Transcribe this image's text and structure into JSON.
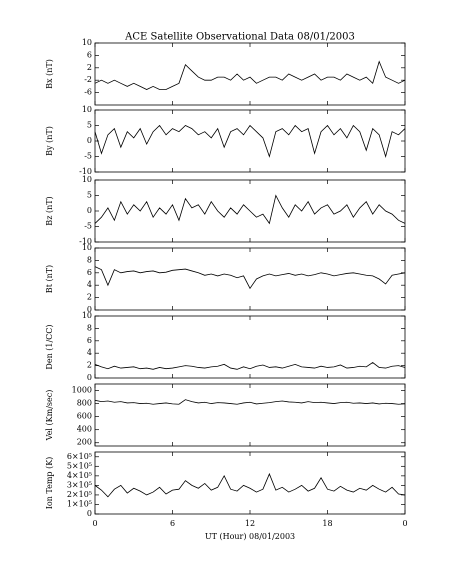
{
  "chart_data": [
    {
      "type": "line",
      "title": "ACE Satellite Observational Data   08/01/2003",
      "ylabel": "Bx (nT)",
      "ylim": [
        -10,
        10
      ],
      "yticks": [
        10,
        6,
        2,
        -2,
        -6
      ],
      "x": [
        0,
        0.5,
        1,
        1.5,
        2,
        2.5,
        3,
        3.5,
        4,
        4.5,
        5,
        5.5,
        6,
        6.5,
        7,
        7.5,
        8,
        8.5,
        9,
        9.5,
        10,
        10.5,
        11,
        11.5,
        12,
        12.5,
        13,
        13.5,
        14,
        14.5,
        15,
        15.5,
        16,
        16.5,
        17,
        17.5,
        18,
        18.5,
        19,
        19.5,
        20,
        20.5,
        21,
        21.5,
        22,
        22.5,
        23,
        23.5,
        24
      ],
      "values": [
        -3,
        -2,
        -3,
        -2,
        -3,
        -4,
        -3,
        -4,
        -5,
        -4,
        -5,
        -5,
        -4,
        -3,
        3,
        1,
        -1,
        -2,
        -2,
        -1,
        -1,
        -2,
        0,
        -2,
        -1,
        -3,
        -2,
        -1,
        -1,
        -2,
        0,
        -1,
        -2,
        -1,
        0,
        -2,
        -1,
        -1,
        -2,
        0,
        -1,
        -2,
        -1,
        -3,
        4,
        -1,
        -2,
        -3,
        -2
      ]
    },
    {
      "type": "line",
      "ylabel": "By (nT)",
      "ylim": [
        -10,
        10
      ],
      "yticks": [
        10,
        5,
        0,
        -5,
        -10
      ],
      "x": [
        0,
        0.5,
        1,
        1.5,
        2,
        2.5,
        3,
        3.5,
        4,
        4.5,
        5,
        5.5,
        6,
        6.5,
        7,
        7.5,
        8,
        8.5,
        9,
        9.5,
        10,
        10.5,
        11,
        11.5,
        12,
        12.5,
        13,
        13.5,
        14,
        14.5,
        15,
        15.5,
        16,
        16.5,
        17,
        17.5,
        18,
        18.5,
        19,
        19.5,
        20,
        20.5,
        21,
        21.5,
        22,
        22.5,
        23,
        23.5,
        24
      ],
      "values": [
        3,
        -4,
        2,
        4,
        -2,
        3,
        1,
        4,
        -1,
        3,
        5,
        2,
        4,
        3,
        5,
        4,
        2,
        3,
        1,
        4,
        -2,
        3,
        4,
        2,
        5,
        3,
        1,
        -5,
        3,
        4,
        2,
        5,
        3,
        4,
        -4,
        3,
        5,
        2,
        4,
        1,
        5,
        3,
        -3,
        4,
        2,
        -5,
        3,
        2,
        4
      ]
    },
    {
      "type": "line",
      "ylabel": "Bz (nT)",
      "ylim": [
        -10,
        10
      ],
      "yticks": [
        10,
        5,
        0,
        -5,
        -10
      ],
      "x": [
        0,
        0.5,
        1,
        1.5,
        2,
        2.5,
        3,
        3.5,
        4,
        4.5,
        5,
        5.5,
        6,
        6.5,
        7,
        7.5,
        8,
        8.5,
        9,
        9.5,
        10,
        10.5,
        11,
        11.5,
        12,
        12.5,
        13,
        13.5,
        14,
        14.5,
        15,
        15.5,
        16,
        16.5,
        17,
        17.5,
        18,
        18.5,
        19,
        19.5,
        20,
        20.5,
        21,
        21.5,
        22,
        22.5,
        23,
        23.5,
        24
      ],
      "values": [
        -4,
        -2,
        1,
        -3,
        3,
        -1,
        2,
        0,
        3,
        -2,
        1,
        -1,
        2,
        -3,
        4,
        1,
        2,
        -1,
        3,
        0,
        -2,
        1,
        -1,
        2,
        0,
        -2,
        -1,
        -4,
        5,
        1,
        -2,
        2,
        0,
        3,
        -1,
        1,
        2,
        -1,
        0,
        2,
        -2,
        1,
        3,
        -1,
        2,
        0,
        -1,
        -3,
        -4
      ]
    },
    {
      "type": "line",
      "ylabel": "Bt (nT)",
      "ylim": [
        0,
        10
      ],
      "yticks": [
        10,
        8,
        6,
        4,
        2,
        0
      ],
      "x": [
        0,
        0.5,
        1,
        1.5,
        2,
        2.5,
        3,
        3.5,
        4,
        4.5,
        5,
        5.5,
        6,
        6.5,
        7,
        7.5,
        8,
        8.5,
        9,
        9.5,
        10,
        10.5,
        11,
        11.5,
        12,
        12.5,
        13,
        13.5,
        14,
        14.5,
        15,
        15.5,
        16,
        16.5,
        17,
        17.5,
        18,
        18.5,
        19,
        19.5,
        20,
        20.5,
        21,
        21.5,
        22,
        22.5,
        23,
        23.5,
        24
      ],
      "values": [
        7,
        6.5,
        4,
        6.5,
        6,
        6.2,
        6.3,
        6,
        6.2,
        6.3,
        6,
        6.1,
        6.4,
        6.5,
        6.6,
        6.3,
        6,
        5.6,
        5.8,
        5.5,
        5.8,
        5.6,
        5.2,
        5.5,
        3.5,
        5,
        5.5,
        5.8,
        5.5,
        5.7,
        5.9,
        5.6,
        5.8,
        5.5,
        5.7,
        6,
        5.8,
        5.5,
        5.7,
        5.9,
        6,
        5.8,
        5.6,
        5.5,
        5,
        4.2,
        5.6,
        5.8,
        6
      ]
    },
    {
      "type": "line",
      "ylabel": "Den (1/CC)",
      "ylim": [
        0,
        10
      ],
      "yticks": [
        10,
        8,
        6,
        4,
        2,
        0
      ],
      "x": [
        0,
        0.5,
        1,
        1.5,
        2,
        2.5,
        3,
        3.5,
        4,
        4.5,
        5,
        5.5,
        6,
        6.5,
        7,
        7.5,
        8,
        8.5,
        9,
        9.5,
        10,
        10.5,
        11,
        11.5,
        12,
        12.5,
        13,
        13.5,
        14,
        14.5,
        15,
        15.5,
        16,
        16.5,
        17,
        17.5,
        18,
        18.5,
        19,
        19.5,
        20,
        20.5,
        21,
        21.5,
        22,
        22.5,
        23,
        23.5,
        24
      ],
      "values": [
        2.2,
        1.8,
        1.5,
        1.9,
        1.6,
        1.7,
        1.8,
        1.5,
        1.6,
        1.4,
        1.7,
        1.5,
        1.6,
        1.8,
        2,
        1.9,
        1.7,
        1.6,
        1.8,
        1.9,
        2.2,
        1.6,
        1.4,
        1.8,
        1.5,
        1.9,
        2.1,
        1.7,
        1.8,
        1.6,
        1.9,
        2.2,
        1.8,
        1.7,
        1.6,
        1.9,
        1.7,
        1.8,
        2.1,
        1.6,
        1.7,
        1.9,
        1.8,
        2.5,
        1.7,
        1.6,
        1.9,
        2,
        1.7
      ]
    },
    {
      "type": "line",
      "ylabel": "Vel (Km/sec)",
      "ylim": [
        150,
        1100
      ],
      "yticks": [
        1000,
        800,
        600,
        400,
        200
      ],
      "x": [
        0,
        0.5,
        1,
        1.5,
        2,
        2.5,
        3,
        3.5,
        4,
        4.5,
        5,
        5.5,
        6,
        6.5,
        7,
        7.5,
        8,
        8.5,
        9,
        9.5,
        10,
        10.5,
        11,
        11.5,
        12,
        12.5,
        13,
        13.5,
        14,
        14.5,
        15,
        15.5,
        16,
        16.5,
        17,
        17.5,
        18,
        18.5,
        19,
        19.5,
        20,
        20.5,
        21,
        21.5,
        22,
        22.5,
        23,
        23.5,
        24
      ],
      "values": [
        850,
        830,
        840,
        820,
        830,
        810,
        815,
        800,
        805,
        790,
        800,
        810,
        795,
        790,
        860,
        830,
        810,
        820,
        800,
        815,
        810,
        800,
        790,
        810,
        820,
        795,
        805,
        815,
        830,
        840,
        825,
        820,
        810,
        830,
        815,
        820,
        810,
        800,
        815,
        820,
        805,
        810,
        800,
        810,
        795,
        805,
        800,
        790,
        795
      ]
    },
    {
      "type": "line",
      "ylabel": "Ion Temp (K)",
      "ylim": [
        0,
        650000
      ],
      "yticks": [
        {
          "value": 600000,
          "label": "6×10⁵"
        },
        {
          "value": 500000,
          "label": "5×10⁵"
        },
        {
          "value": 400000,
          "label": "4×10⁵"
        },
        {
          "value": 300000,
          "label": "3×10⁵"
        },
        {
          "value": 200000,
          "label": "2×10⁵"
        },
        {
          "value": 100000,
          "label": "1×10⁵"
        },
        0
      ],
      "x": [
        0,
        0.5,
        1,
        1.5,
        2,
        2.5,
        3,
        3.5,
        4,
        4.5,
        5,
        5.5,
        6,
        6.5,
        7,
        7.5,
        8,
        8.5,
        9,
        9.5,
        10,
        10.5,
        11,
        11.5,
        12,
        12.5,
        13,
        13.5,
        14,
        14.5,
        15,
        15.5,
        16,
        16.5,
        17,
        17.5,
        18,
        18.5,
        19,
        19.5,
        20,
        20.5,
        21,
        21.5,
        22,
        22.5,
        23,
        23.5,
        24
      ],
      "values": [
        300000,
        250000,
        180000,
        260000,
        300000,
        220000,
        270000,
        240000,
        200000,
        230000,
        280000,
        210000,
        250000,
        260000,
        350000,
        300000,
        270000,
        320000,
        250000,
        280000,
        400000,
        260000,
        240000,
        300000,
        270000,
        230000,
        260000,
        420000,
        250000,
        280000,
        230000,
        260000,
        300000,
        240000,
        270000,
        380000,
        260000,
        240000,
        290000,
        250000,
        230000,
        270000,
        250000,
        300000,
        260000,
        230000,
        280000,
        210000,
        200000
      ],
      "xlabel": "UT (Hour)  08/01/2003",
      "xlim": [
        0,
        24
      ],
      "xticks": [
        0,
        6,
        12,
        18,
        {
          "value": 24,
          "label": "0"
        }
      ]
    }
  ]
}
